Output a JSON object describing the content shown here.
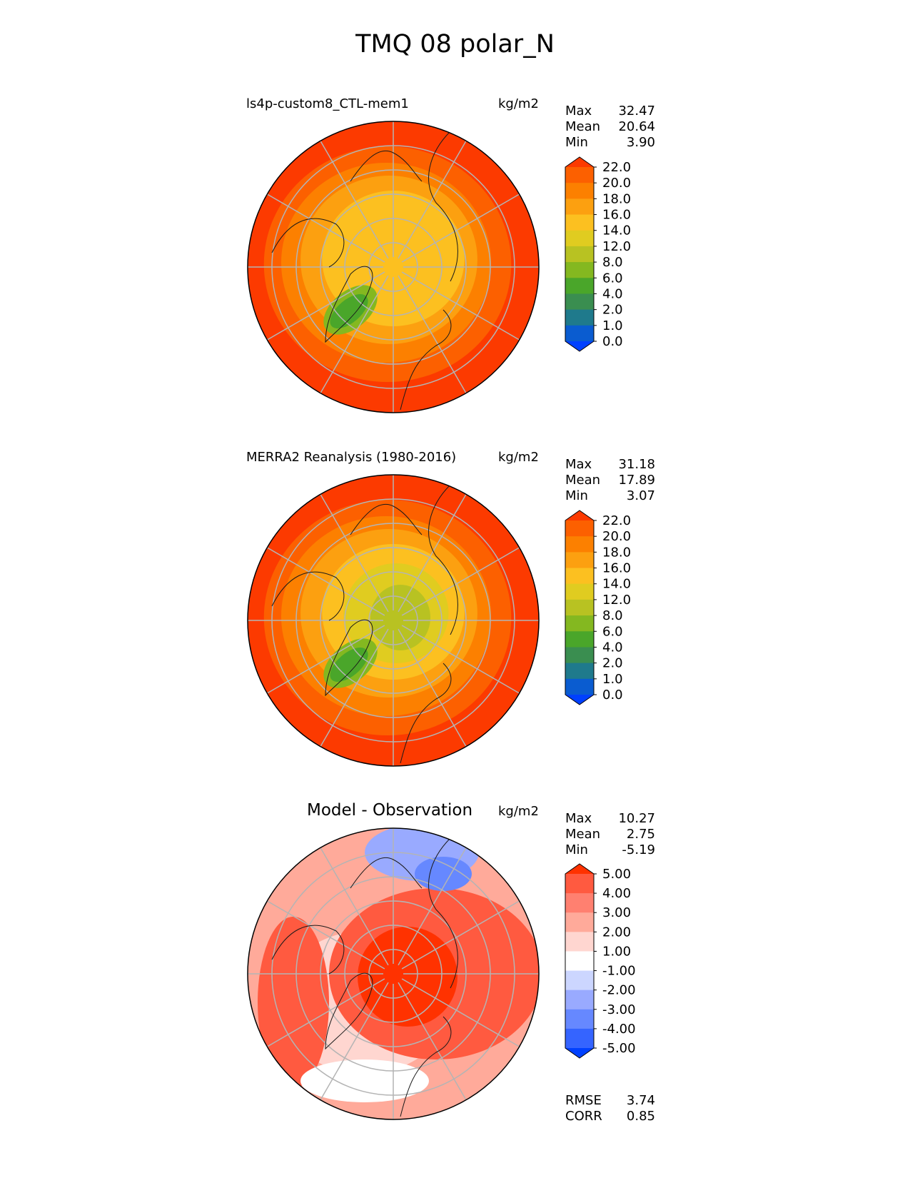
{
  "title": "TMQ 08 polar_N",
  "colors": {
    "abs_scale": [
      "#0040ff",
      "#0a5cd0",
      "#1f7a8c",
      "#3a8e50",
      "#4aa62a",
      "#84b820",
      "#b8c222",
      "#e0cc20",
      "#fcc020",
      "#fca010",
      "#fc8000",
      "#fc6000",
      "#fc3a00"
    ],
    "diff_scale": [
      "#0040ff",
      "#3564ff",
      "#6688ff",
      "#99aaff",
      "#ccd6ff",
      "#ffffff",
      "#ffd6d0",
      "#ffaa9a",
      "#ff8070",
      "#ff5a40",
      "#ff3200"
    ],
    "grid": "#b4b4b4",
    "coast": "#1a1a1a"
  },
  "chart_data": [
    {
      "type": "polar-map",
      "name": "model",
      "title": "ls4p-custom8_CTL-mem1",
      "units": "kg/m2",
      "stats": {
        "max_label": "Max",
        "max": "32.47",
        "mean_label": "Mean",
        "mean": "20.64",
        "min_label": "Min",
        "min": "3.90"
      },
      "levels": [
        "0.0",
        "1.0",
        "2.0",
        "4.0",
        "6.0",
        "8.0",
        "12.0",
        "14.0",
        "16.0",
        "18.0",
        "20.0",
        "22.0"
      ],
      "colorbar": "abs_scale",
      "polar_level": 8
    },
    {
      "type": "polar-map",
      "name": "obs",
      "title": "MERRA2 Reanalysis (1980-2016)",
      "units": "kg/m2",
      "stats": {
        "max_label": "Max",
        "max": "31.18",
        "mean_label": "Mean",
        "mean": "17.89",
        "min_label": "Min",
        "min": "3.07"
      },
      "levels": [
        "0.0",
        "1.0",
        "2.0",
        "4.0",
        "6.0",
        "8.0",
        "12.0",
        "14.0",
        "16.0",
        "18.0",
        "20.0",
        "22.0"
      ],
      "colorbar": "abs_scale",
      "polar_level": 6
    },
    {
      "type": "polar-map",
      "name": "diff",
      "title": "Model - Observation",
      "units": "kg/m2",
      "stats": {
        "max_label": "Max",
        "max": "10.27",
        "mean_label": "Mean",
        "mean": "2.75",
        "min_label": "Min",
        "min": "-5.19"
      },
      "levels": [
        "-5.00",
        "-4.00",
        "-3.00",
        "-2.00",
        "-1.00",
        "1.00",
        "2.00",
        "3.00",
        "4.00",
        "5.00"
      ],
      "colorbar": "diff_scale",
      "extra": {
        "rmse_label": "RMSE",
        "rmse": "3.74",
        "corr_label": "CORR",
        "corr": "0.85"
      }
    }
  ]
}
